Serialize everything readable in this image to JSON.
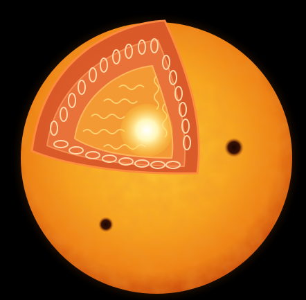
{
  "image": {
    "subject": "sun-cutaway",
    "colors": {
      "background": "#000000",
      "surface_light": "#ffd23a",
      "surface_mid": "#f59a1a",
      "surface_dark": "#d2500c",
      "limb_glow": "#ff7a00",
      "cutaway_shell": "#d9572a",
      "cutaway_edge": "#f07a3e",
      "convective_zone": "#e8743a",
      "radiative_zone": "#f29a33",
      "core_white": "#ffffff",
      "core_yellow": "#ffe66a",
      "sunspot": "#2a0c05",
      "wave_lines": "#ffd070",
      "convection_loops": "#ffd7a8"
    },
    "features": [
      "photosphere",
      "sunspot",
      "sunspot",
      "cutaway-wedge",
      "convection-cells",
      "radiation-waves",
      "core"
    ]
  }
}
